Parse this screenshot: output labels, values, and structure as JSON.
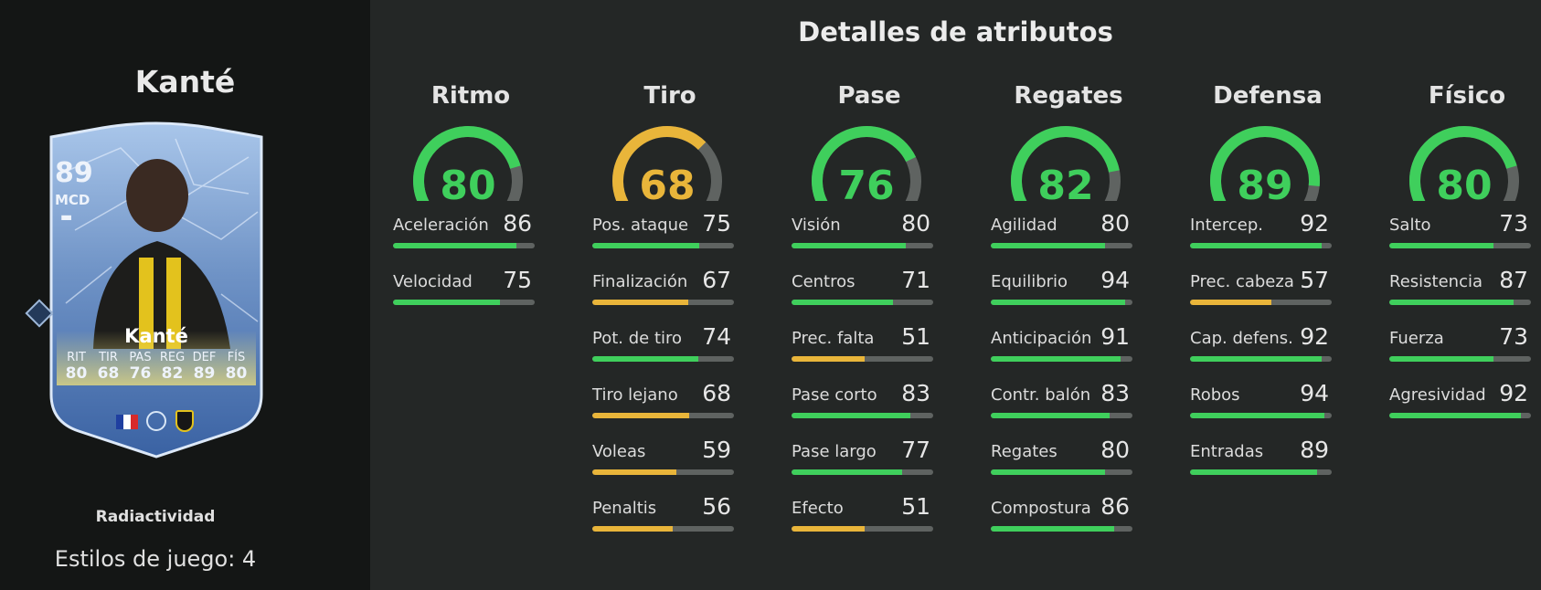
{
  "player": {
    "name": "Kanté",
    "card": {
      "rating": "89",
      "position": "MCD",
      "name": "Kanté",
      "stat_labels": [
        "RIT",
        "TIR",
        "PAS",
        "REG",
        "DEF",
        "FÍS"
      ],
      "stat_values": [
        "80",
        "68",
        "76",
        "82",
        "89",
        "80"
      ]
    },
    "playstyle": "Radiactividad",
    "playstyles_count": "Estilos de juego: 4"
  },
  "attributes": {
    "title": "Detalles de atributos",
    "colors": {
      "high": "#3fcf5c",
      "mid": "#e9b53a",
      "track": "#5f6361"
    },
    "categories": [
      {
        "name": "Ritmo",
        "value": 80,
        "value_text": "80",
        "stats": [
          {
            "label": "Aceleración",
            "value": 86,
            "value_text": "86"
          },
          {
            "label": "Velocidad",
            "value": 75,
            "value_text": "75"
          }
        ]
      },
      {
        "name": "Tiro",
        "value": 68,
        "value_text": "68",
        "stats": [
          {
            "label": "Pos. ataque",
            "value": 75,
            "value_text": "75"
          },
          {
            "label": "Finalización",
            "value": 67,
            "value_text": "67"
          },
          {
            "label": "Pot. de tiro",
            "value": 74,
            "value_text": "74"
          },
          {
            "label": "Tiro lejano",
            "value": 68,
            "value_text": "68"
          },
          {
            "label": "Voleas",
            "value": 59,
            "value_text": "59"
          },
          {
            "label": "Penaltis",
            "value": 56,
            "value_text": "56"
          }
        ]
      },
      {
        "name": "Pase",
        "value": 76,
        "value_text": "76",
        "stats": [
          {
            "label": "Visión",
            "value": 80,
            "value_text": "80"
          },
          {
            "label": "Centros",
            "value": 71,
            "value_text": "71"
          },
          {
            "label": "Prec. falta",
            "value": 51,
            "value_text": "51"
          },
          {
            "label": "Pase corto",
            "value": 83,
            "value_text": "83"
          },
          {
            "label": "Pase largo",
            "value": 77,
            "value_text": "77"
          },
          {
            "label": "Efecto",
            "value": 51,
            "value_text": "51"
          }
        ]
      },
      {
        "name": "Regates",
        "value": 82,
        "value_text": "82",
        "stats": [
          {
            "label": "Agilidad",
            "value": 80,
            "value_text": "80"
          },
          {
            "label": "Equilibrio",
            "value": 94,
            "value_text": "94"
          },
          {
            "label": "Anticipación",
            "value": 91,
            "value_text": "91"
          },
          {
            "label": "Contr. balón",
            "value": 83,
            "value_text": "83"
          },
          {
            "label": "Regates",
            "value": 80,
            "value_text": "80"
          },
          {
            "label": "Compostura",
            "value": 86,
            "value_text": "86"
          }
        ]
      },
      {
        "name": "Defensa",
        "value": 89,
        "value_text": "89",
        "stats": [
          {
            "label": "Intercep.",
            "value": 92,
            "value_text": "92"
          },
          {
            "label": "Prec. cabeza",
            "value": 57,
            "value_text": "57"
          },
          {
            "label": "Cap. defens.",
            "value": 92,
            "value_text": "92"
          },
          {
            "label": "Robos",
            "value": 94,
            "value_text": "94"
          },
          {
            "label": "Entradas",
            "value": 89,
            "value_text": "89"
          }
        ]
      },
      {
        "name": "Físico",
        "value": 80,
        "value_text": "80",
        "stats": [
          {
            "label": "Salto",
            "value": 73,
            "value_text": "73"
          },
          {
            "label": "Resistencia",
            "value": 87,
            "value_text": "87"
          },
          {
            "label": "Fuerza",
            "value": 73,
            "value_text": "73"
          },
          {
            "label": "Agresividad",
            "value": 92,
            "value_text": "92"
          }
        ]
      }
    ]
  }
}
